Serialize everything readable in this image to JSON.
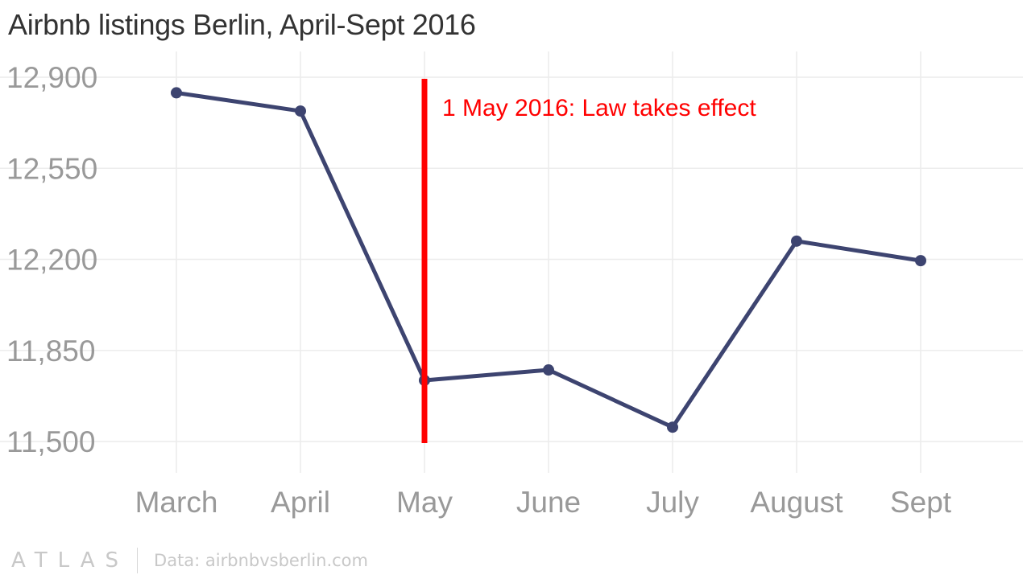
{
  "title": "Airbnb listings Berlin, April-Sept 2016",
  "chart_data": {
    "type": "line",
    "title": "Airbnb listings Berlin, April-Sept 2016",
    "categories": [
      "March",
      "April",
      "May",
      "June",
      "July",
      "August",
      "Sept"
    ],
    "series": [
      {
        "values": [
          12840,
          12770,
          11735,
          11775,
          11555,
          12270,
          12195
        ]
      }
    ],
    "yticks": [
      "12,900",
      "12,550",
      "12,200",
      "11,850",
      "11,500"
    ],
    "ytick_values": [
      12900,
      12550,
      12200,
      11850,
      11500
    ],
    "ylim": [
      11500,
      12900
    ],
    "grid": true,
    "annotation": {
      "category": "May",
      "label": "1 May 2016: Law takes effect",
      "color": "#ff0000"
    },
    "line_color": "#3d4470",
    "grid_color": "#ececec",
    "tick_color": "#999999"
  },
  "footer": {
    "logo": "ATLAS",
    "source": "Data: airbnbvsberlin.com"
  }
}
